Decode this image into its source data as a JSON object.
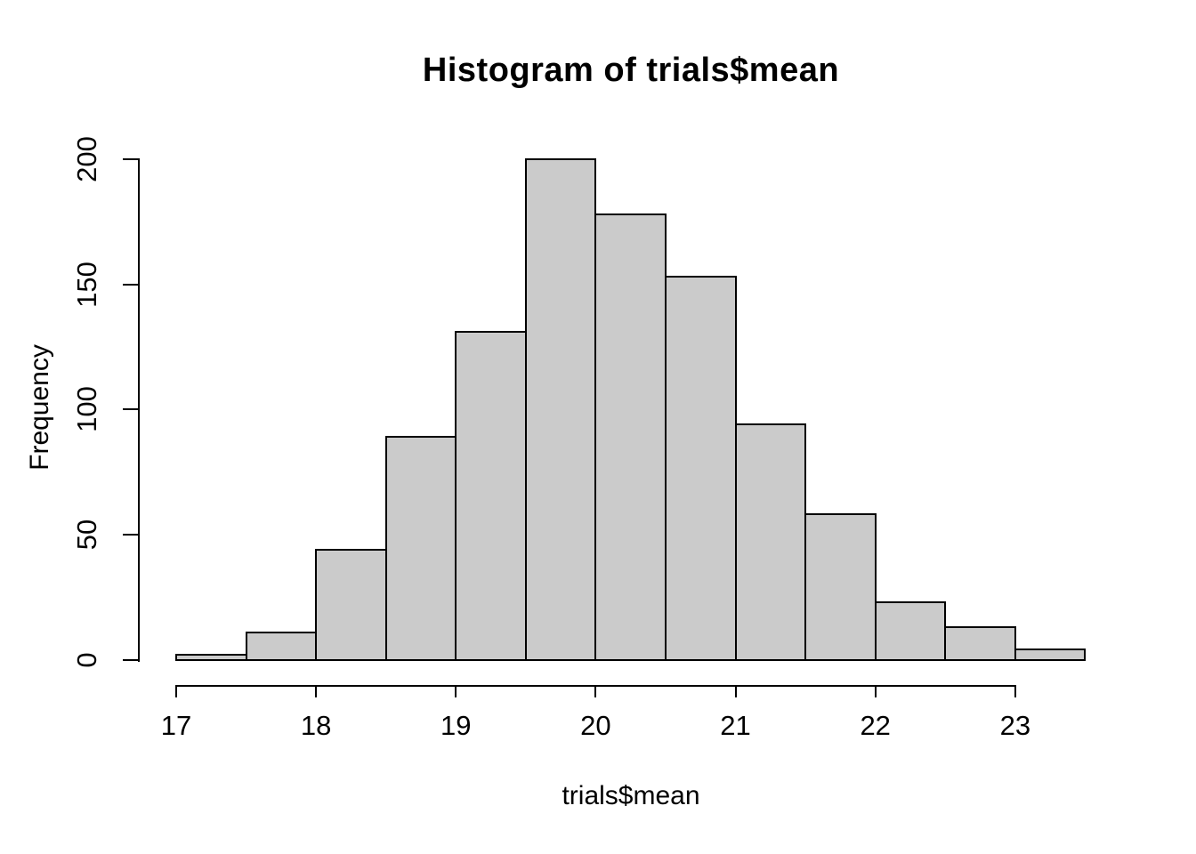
{
  "chart_data": {
    "type": "bar",
    "kind": "histogram",
    "title": "Histogram of trials$mean",
    "xlabel": "trials$mean",
    "ylabel": "Frequency",
    "bin_width": 0.5,
    "bin_edges": [
      17,
      17.5,
      18,
      18.5,
      19,
      19.5,
      20,
      20.5,
      21,
      21.5,
      22,
      22.5,
      23,
      23.5
    ],
    "counts": [
      2,
      11,
      44,
      89,
      131,
      200,
      178,
      153,
      94,
      58,
      23,
      13,
      4
    ],
    "total_count": 1000,
    "x_ticks": [
      17,
      18,
      19,
      20,
      21,
      22,
      23
    ],
    "y_ticks": [
      0,
      50,
      100,
      150,
      200
    ],
    "xlim": [
      17,
      23.5
    ],
    "ylim": [
      0,
      200
    ],
    "grid": false,
    "legend": "none",
    "bar_fill": "#CBCBCB",
    "bar_border": "#000000",
    "axis_color": "#000000",
    "text_color": "#000000",
    "background": "#ffffff"
  }
}
